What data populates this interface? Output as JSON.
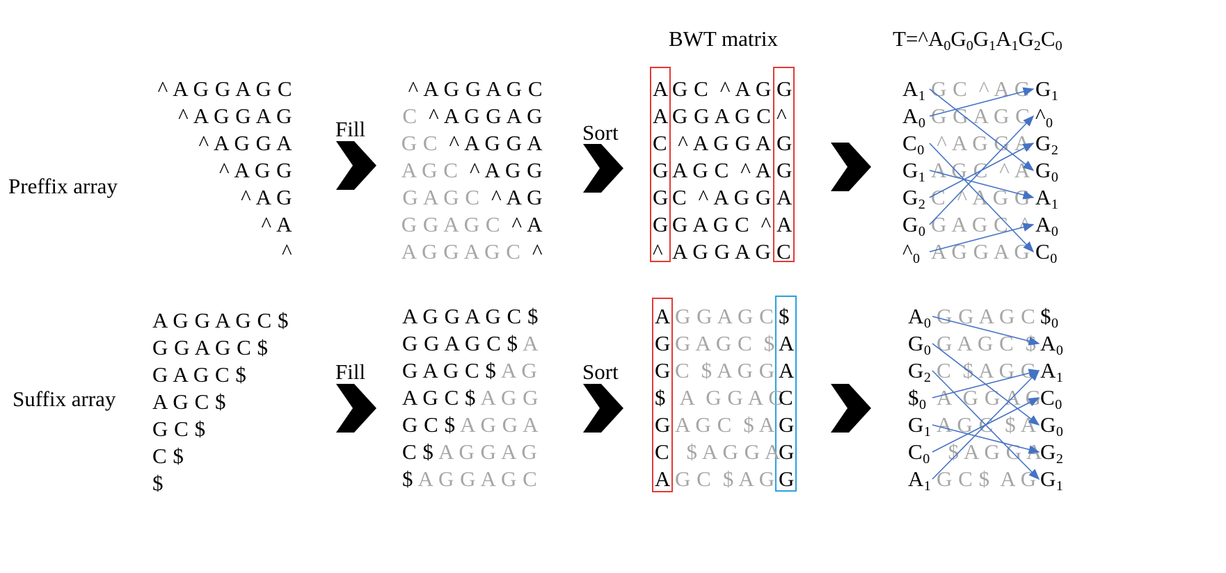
{
  "labels": {
    "prefix": "Preffix array",
    "suffix": "Suffix array",
    "fill": "Fill",
    "sort": "Sort",
    "bwt_matrix": "BWT matrix",
    "t_prefix": "T=^",
    "t_sequence": [
      {
        "c": "A",
        "i": "0"
      },
      {
        "c": "G",
        "i": "0"
      },
      {
        "c": "G",
        "i": "1"
      },
      {
        "c": "A",
        "i": "1"
      },
      {
        "c": "G",
        "i": "2"
      },
      {
        "c": "C",
        "i": "0"
      }
    ]
  },
  "prefix": {
    "initial": [
      "^ A G G A G C",
      "^ A G G A G",
      "^ A G G A",
      "^ A G G",
      "^ A G",
      "^ A",
      "^"
    ],
    "filled": [
      [
        {
          "t": "^ A G G A G C",
          "g": false
        }
      ],
      [
        {
          "t": "C  ",
          "g": true
        },
        {
          "t": "^ A G G A G",
          "g": false
        }
      ],
      [
        {
          "t": "G C  ",
          "g": true
        },
        {
          "t": "^ A G G A",
          "g": false
        }
      ],
      [
        {
          "t": "A G C  ",
          "g": true
        },
        {
          "t": "^ A G G",
          "g": false
        }
      ],
      [
        {
          "t": "G A G C  ",
          "g": true
        },
        {
          "t": "^ A G",
          "g": false
        }
      ],
      [
        {
          "t": "G G A G C  ",
          "g": true
        },
        {
          "t": "^ A",
          "g": false
        }
      ],
      [
        {
          "t": "A G G A G C  ",
          "g": true
        },
        {
          "t": "^",
          "g": false
        }
      ]
    ],
    "sorted": [
      {
        "first": "A",
        "mid": "G C  ^ A G",
        "last": "G"
      },
      {
        "first": "A",
        "mid": "G G A G C",
        "last": "^"
      },
      {
        "first": "C",
        "mid": " ^ A G G A",
        "last": "G"
      },
      {
        "first": "G",
        "mid": "A G C  ^ A",
        "last": "G"
      },
      {
        "first": "G",
        "mid": "C  ^ A G G",
        "last": "A"
      },
      {
        "first": "G",
        "mid": "G A G C  ^",
        "last": "A"
      },
      {
        "first": "^",
        "mid": "A G G A G",
        "last": "C"
      }
    ],
    "lf": [
      {
        "fc": "A",
        "fi": "1",
        "mid": "G C  ^ A G",
        "lc": "G",
        "li": "1"
      },
      {
        "fc": "A",
        "fi": "0",
        "mid": "G G A G C",
        "lc": "^",
        "li": "0"
      },
      {
        "fc": "C",
        "fi": "0",
        "mid": " ^ A G G A",
        "lc": "G",
        "li": "2"
      },
      {
        "fc": "G",
        "fi": "1",
        "mid": "A G C  ^ A",
        "lc": "G",
        "li": "0"
      },
      {
        "fc": "G",
        "fi": "2",
        "mid": "C  ^ A G G",
        "lc": "A",
        "li": "1"
      },
      {
        "fc": "G",
        "fi": "0",
        "mid": "G A G C  ^",
        "lc": "A",
        "li": "0"
      },
      {
        "fc": "^",
        "fi": "0",
        "mid": "A G G A G",
        "lc": "C",
        "li": "0"
      }
    ],
    "lf_links": [
      [
        0,
        3
      ],
      [
        1,
        0
      ],
      [
        2,
        6
      ],
      [
        3,
        4
      ],
      [
        4,
        2
      ],
      [
        5,
        1
      ],
      [
        6,
        5
      ]
    ]
  },
  "suffix": {
    "initial": [
      "A G G A G C $",
      "G G A G C $",
      "G A G C $",
      "A G C $",
      "G C $",
      "C $",
      "$"
    ],
    "filled": [
      [
        {
          "t": "A G G A G C $",
          "g": false
        }
      ],
      [
        {
          "t": "G G A G C $ ",
          "g": false
        },
        {
          "t": "A",
          "g": true
        }
      ],
      [
        {
          "t": "G A G C $ ",
          "g": false
        },
        {
          "t": "A G",
          "g": true
        }
      ],
      [
        {
          "t": "A G C $ ",
          "g": false
        },
        {
          "t": "A G G",
          "g": true
        }
      ],
      [
        {
          "t": "G C $ ",
          "g": false
        },
        {
          "t": "A G G A",
          "g": true
        }
      ],
      [
        {
          "t": "C $ ",
          "g": false
        },
        {
          "t": "A G G A G",
          "g": true
        }
      ],
      [
        {
          "t": "$ ",
          "g": false
        },
        {
          "t": "A G G A G C",
          "g": true
        }
      ]
    ],
    "sorted": [
      {
        "first": "A",
        "mid": "G G A G C",
        "last": "$"
      },
      {
        "first": "G",
        "mid": "G A G C  $",
        "last": "A"
      },
      {
        "first": "G",
        "mid": "C  $ A G G",
        "last": "A"
      },
      {
        "first": "$",
        "mid": " A  G G A G",
        "last": "C"
      },
      {
        "first": "G",
        "mid": "A G C  $ A",
        "last": "G"
      },
      {
        "first": "C",
        "mid": "  $ A G G A",
        "last": "G"
      },
      {
        "first": "A",
        "mid": "G C  $ A G",
        "last": "G"
      }
    ],
    "lf": [
      {
        "fc": "A",
        "fi": "0",
        "mid": "G G A G C",
        "lc": "$",
        "li": "0"
      },
      {
        "fc": "G",
        "fi": "0",
        "mid": "G A G C  $",
        "lc": "A",
        "li": "0"
      },
      {
        "fc": "G",
        "fi": "2",
        "mid": "C  $ A G G",
        "lc": "A",
        "li": "1"
      },
      {
        "fc": "$",
        "fi": "0",
        "mid": "A  G G A G",
        "lc": "C",
        "li": "0"
      },
      {
        "fc": "G",
        "fi": "1",
        "mid": "A G C  $ A",
        "lc": "G",
        "li": "0"
      },
      {
        "fc": "C",
        "fi": "0",
        "mid": "  $ A G G A",
        "lc": "G",
        "li": "2"
      },
      {
        "fc": "A",
        "fi": "1",
        "mid": "G C $  A G",
        "lc": "G",
        "li": "1"
      }
    ],
    "lf_links": [
      [
        0,
        1
      ],
      [
        1,
        4
      ],
      [
        2,
        6
      ],
      [
        3,
        2
      ],
      [
        4,
        5
      ],
      [
        5,
        3
      ],
      [
        6,
        2
      ]
    ]
  },
  "colors": {
    "gray_text": "#a6a6a6",
    "red_box": "#e53935",
    "blue_box": "#29a3dc",
    "link_line": "#4472c4"
  }
}
